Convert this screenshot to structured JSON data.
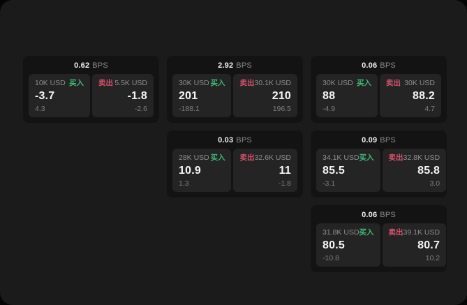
{
  "colors": {
    "screen_background": "#1b1b1b",
    "card_background": "#131313",
    "panel_background": "#242424",
    "buy_accent": "#3dba74",
    "sell_accent": "#d8506b",
    "text_primary": "#f2f2f2",
    "text_muted": "#8b8b8b"
  },
  "cards": [
    {
      "bps": "0.62",
      "unit": "BPS",
      "buy": {
        "amount": "10K USD",
        "label": "买入",
        "value": "-3.7",
        "sub": "4.3"
      },
      "sell": {
        "label": "卖出",
        "amount": "5.5K USD",
        "value": "-1.8",
        "sub": "-2.6"
      }
    },
    {
      "bps": "2.92",
      "unit": "BPS",
      "buy": {
        "amount": "30K USD",
        "label": "买入",
        "value": "201",
        "sub": "-188.1"
      },
      "sell": {
        "label": "卖出",
        "amount": "30.1K USD",
        "value": "210",
        "sub": "196.5"
      }
    },
    {
      "bps": "0.06",
      "unit": "BPS",
      "buy": {
        "amount": "30K USD",
        "label": "买入",
        "value": "88",
        "sub": "-4.9"
      },
      "sell": {
        "label": "卖出",
        "amount": "30K USD",
        "value": "88.2",
        "sub": "4.7"
      }
    },
    {
      "bps": "0.03",
      "unit": "BPS",
      "buy": {
        "amount": "28K USD",
        "label": "买入",
        "value": "10.9",
        "sub": "1.3"
      },
      "sell": {
        "label": "卖出",
        "amount": "32.6K USD",
        "value": "11",
        "sub": "-1.8"
      }
    },
    {
      "bps": "0.09",
      "unit": "BPS",
      "buy": {
        "amount": "34.1K USD",
        "label": "买入",
        "value": "85.5",
        "sub": "-3.1"
      },
      "sell": {
        "label": "卖出",
        "amount": "32.8K USD",
        "value": "85.8",
        "sub": "3.0"
      }
    },
    {
      "bps": "0.06",
      "unit": "BPS",
      "buy": {
        "amount": "31.8K USD",
        "label": "买入",
        "value": "80.5",
        "sub": "-10.8"
      },
      "sell": {
        "label": "卖出",
        "amount": "39.1K USD",
        "value": "80.7",
        "sub": "10.2"
      }
    }
  ]
}
